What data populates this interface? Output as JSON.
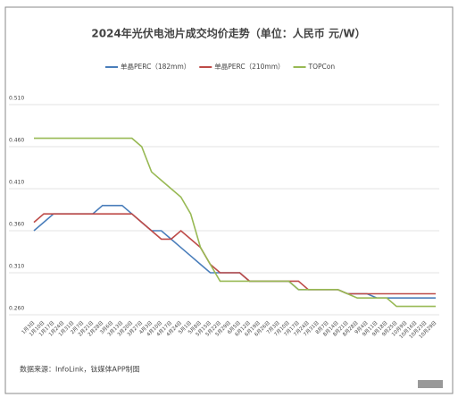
{
  "chart_data": {
    "type": "line",
    "title": "2024年光伏电池片成交均价走势（单位：人民币 元/W）",
    "source": "数据来源：InfoLink，钛媒体APP制图",
    "categories": [
      "1月3日",
      "1月10日",
      "1月17日",
      "1月24日",
      "1月31日",
      "2月7日",
      "2月21日",
      "2月28日",
      "3月6日",
      "3月13日",
      "3月20日",
      "3月27日",
      "4月3日",
      "4月10日",
      "4月17日",
      "4月24日",
      "5月1日",
      "5月8日",
      "5月15日",
      "5月22日",
      "5月29日",
      "6月5日",
      "6月12日",
      "6月19日",
      "6月26日",
      "7月3日",
      "7月10日",
      "7月17日",
      "7月24日",
      "7月31日",
      "8月7日",
      "8月14日",
      "8月21日",
      "8月28日",
      "9月4日",
      "9月11日",
      "9月18日",
      "9月25日",
      "10月9日",
      "10月16日",
      "10月23日",
      "10月29日"
    ],
    "series": [
      {
        "name": "单晶PERC（182mm）",
        "color": "#4a7ebb",
        "values": [
          0.36,
          0.37,
          0.38,
          0.38,
          0.38,
          0.38,
          0.38,
          0.39,
          0.39,
          0.39,
          0.38,
          0.37,
          0.36,
          0.36,
          0.35,
          0.34,
          0.33,
          0.32,
          0.31,
          0.31,
          0.31,
          0.31,
          0.3,
          0.3,
          0.3,
          0.3,
          0.3,
          0.29,
          0.29,
          0.29,
          0.29,
          0.29,
          0.285,
          0.285,
          0.285,
          0.28,
          0.28,
          0.28,
          0.28,
          0.28,
          0.28,
          0.28
        ]
      },
      {
        "name": "单晶PERC（210mm）",
        "color": "#be4b48",
        "values": [
          0.37,
          0.38,
          0.38,
          0.38,
          0.38,
          0.38,
          0.38,
          0.38,
          0.38,
          0.38,
          0.38,
          0.37,
          0.36,
          0.35,
          0.35,
          0.36,
          0.35,
          0.34,
          0.32,
          0.31,
          0.31,
          0.31,
          0.3,
          0.3,
          0.3,
          0.3,
          0.3,
          0.3,
          0.29,
          0.29,
          0.29,
          0.29,
          0.285,
          0.285,
          0.285,
          0.285,
          0.285,
          0.285,
          0.285,
          0.285,
          0.285,
          0.285
        ]
      },
      {
        "name": "TOPCon",
        "color": "#98b954",
        "values": [
          0.47,
          0.47,
          0.47,
          0.47,
          0.47,
          0.47,
          0.47,
          0.47,
          0.47,
          0.47,
          0.47,
          0.46,
          0.43,
          0.42,
          0.41,
          0.4,
          0.38,
          0.34,
          0.32,
          0.3,
          0.3,
          0.3,
          0.3,
          0.3,
          0.3,
          0.3,
          0.3,
          0.29,
          0.29,
          0.29,
          0.29,
          0.29,
          0.285,
          0.28,
          0.28,
          0.28,
          0.28,
          0.27,
          0.27,
          0.27,
          0.27,
          0.27
        ]
      }
    ],
    "ylim": [
      0.26,
      0.51
    ],
    "yticks": [
      {
        "value": 0.26,
        "label": "0.260"
      },
      {
        "value": 0.31,
        "label": "0.310"
      },
      {
        "value": 0.36,
        "label": "0.360"
      },
      {
        "value": 0.41,
        "label": "0.410"
      },
      {
        "value": 0.46,
        "label": "0.460"
      },
      {
        "value": 0.51,
        "label": "0.510"
      }
    ],
    "grid": true
  }
}
